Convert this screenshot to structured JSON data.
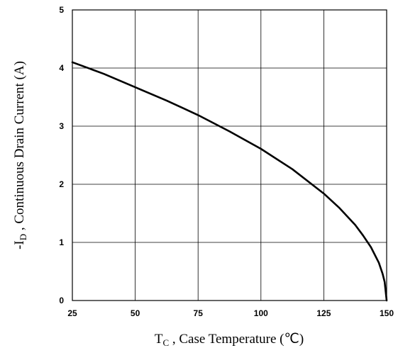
{
  "chart_data": {
    "type": "line",
    "xlabel": {
      "main": "T",
      "sub": "C",
      "rest": " , Case Temperature (℃)"
    },
    "ylabel": {
      "main": "-I",
      "sub": "D",
      "rest": " , Continuous Drain Current (A)"
    },
    "xlim": [
      25,
      150
    ],
    "ylim": [
      0,
      5
    ],
    "x_ticks": [
      "25",
      "50",
      "75",
      "100",
      "125",
      "150"
    ],
    "y_ticks": [
      "0",
      "1",
      "2",
      "3",
      "4",
      "5"
    ],
    "grid": true,
    "series": [
      {
        "x": [
          25,
          37.5,
          50,
          62.5,
          75,
          87.5,
          100,
          112.5,
          125,
          131.25,
          137.5,
          140.6,
          143.75,
          146.9,
          148.4,
          149.2,
          150
        ],
        "y": [
          4.1,
          3.9,
          3.67,
          3.44,
          3.19,
          2.91,
          2.61,
          2.26,
          1.84,
          1.59,
          1.3,
          1.12,
          0.92,
          0.65,
          0.46,
          0.32,
          0
        ]
      }
    ]
  }
}
